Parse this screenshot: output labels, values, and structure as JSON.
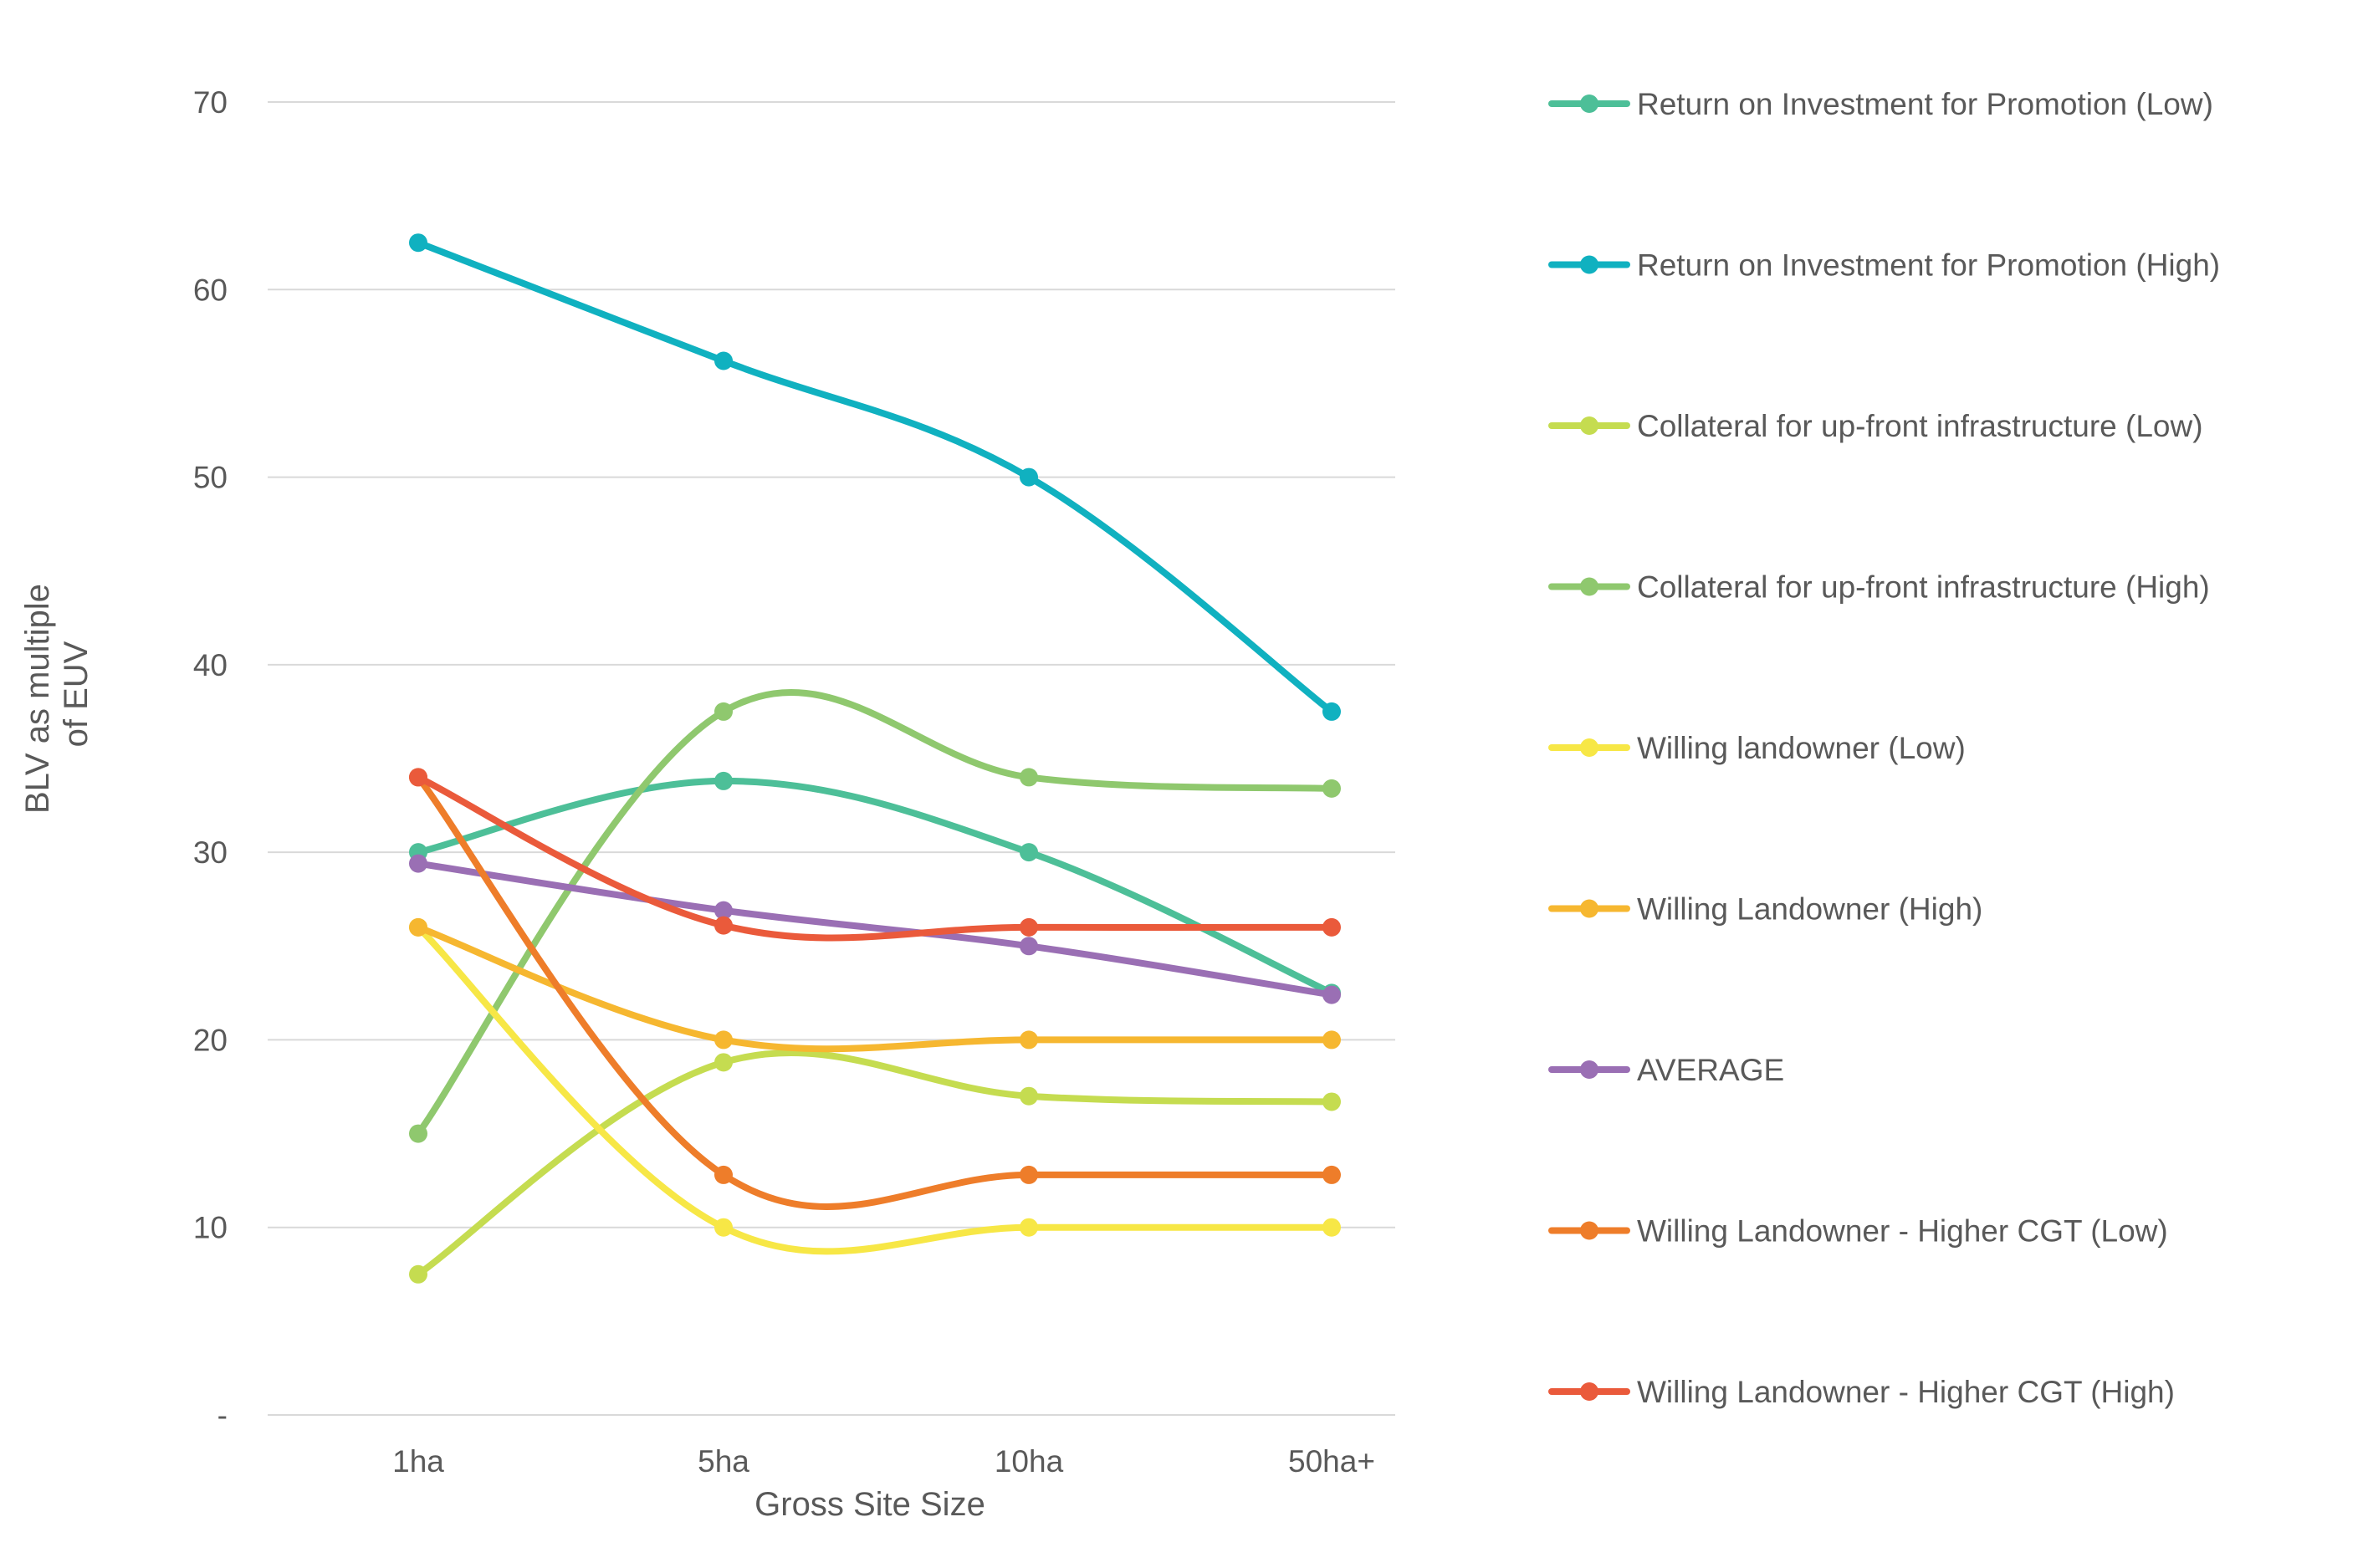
{
  "chart_data": {
    "type": "line",
    "categories": [
      "1ha",
      "5ha",
      "10ha",
      "50ha+"
    ],
    "xlabel": "Gross Site Size",
    "ylabel_lines": [
      "BLV as multiple",
      "of EUV"
    ],
    "ylim": [
      0,
      70
    ],
    "yticks": [
      {
        "value": 0,
        "label": "-"
      },
      {
        "value": 10,
        "label": "10"
      },
      {
        "value": 20,
        "label": "20"
      },
      {
        "value": 30,
        "label": "30"
      },
      {
        "value": 40,
        "label": "40"
      },
      {
        "value": 50,
        "label": "50"
      },
      {
        "value": 60,
        "label": "60"
      },
      {
        "value": 70,
        "label": "70"
      }
    ],
    "grid": true,
    "legend_position": "right",
    "series": [
      {
        "name": "Return on Investment for Promotion (Low)",
        "color": "#4dbf98",
        "values": [
          30,
          33.8,
          30,
          22.5
        ]
      },
      {
        "name": "Return on Investment for Promotion (High)",
        "color": "#10b1c0",
        "values": [
          62.5,
          56.2,
          50,
          37.5
        ]
      },
      {
        "name": "Collateral for up-front infrastructure (Low)",
        "color": "#c5dc50",
        "values": [
          7.5,
          18.8,
          17,
          16.7
        ]
      },
      {
        "name": "Collateral for up-front infrastructure (High)",
        "color": "#8fc86e",
        "values": [
          15,
          37.5,
          34,
          33.4
        ]
      },
      {
        "name": "Willing landowner (Low)",
        "color": "#f7e746",
        "values": [
          26,
          10,
          10,
          10
        ]
      },
      {
        "name": "Willing Landowner (High)",
        "color": "#f6b730",
        "values": [
          26,
          20,
          20,
          20
        ]
      },
      {
        "name": "AVERAGE",
        "color": "#9a6fb4",
        "values": [
          29.4,
          26.9,
          25,
          22.4
        ]
      },
      {
        "name": "Willing Landowner - Higher CGT (Low)",
        "color": "#ee7d2a",
        "values": [
          34,
          12.8,
          12.8,
          12.8
        ]
      },
      {
        "name": "Willing Landowner - Higher CGT (High)",
        "color": "#ea5a3b",
        "values": [
          34,
          26.1,
          26,
          26
        ]
      }
    ]
  }
}
